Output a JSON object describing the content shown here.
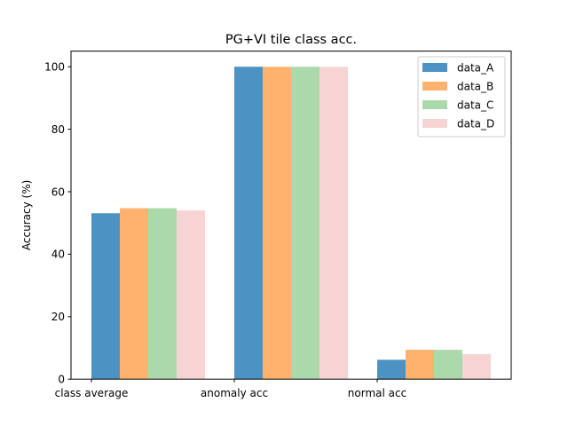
{
  "chart_data": {
    "type": "bar",
    "title": "PG+VI tile class acc.",
    "xlabel": "",
    "ylabel": "Accuracy (%)",
    "categories": [
      "class average",
      "anomaly acc",
      "normal acc"
    ],
    "ylim": [
      0,
      105
    ],
    "yticks": [
      0,
      20,
      40,
      60,
      80,
      100
    ],
    "grid": false,
    "legend": "top-right",
    "series": [
      {
        "name": "data_A",
        "color": "#1f77b4",
        "alpha": 0.8,
        "values": [
          53.1,
          100.0,
          6.2
        ]
      },
      {
        "name": "data_B",
        "color": "#ff7f0e",
        "alpha": 0.6,
        "values": [
          54.7,
          100.0,
          9.4
        ]
      },
      {
        "name": "data_C",
        "color": "#2ca02c",
        "alpha": 0.4,
        "values": [
          54.7,
          100.0,
          9.4
        ]
      },
      {
        "name": "data_D",
        "color": "#d62728",
        "alpha": 0.2,
        "values": [
          54.0,
          100.0,
          8.0
        ]
      }
    ]
  }
}
